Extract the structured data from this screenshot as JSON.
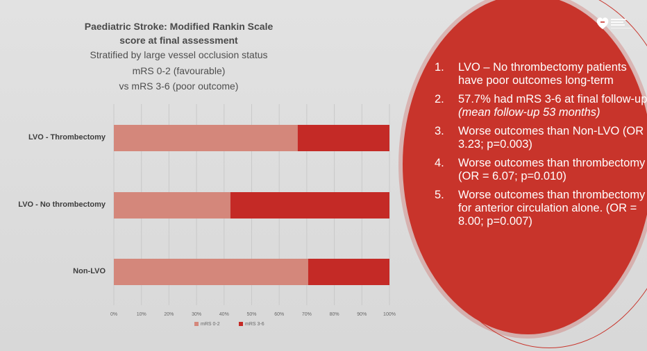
{
  "chart_data": {
    "type": "bar",
    "orientation": "horizontal",
    "stacked": true,
    "normalized": true,
    "title": "Paediatric Stroke: Modified Rankin Scale score at final assessment",
    "title_lines": [
      "Paediatric Stroke: Modified Rankin Scale",
      "score at final assessment"
    ],
    "subtitle_lines": [
      "Stratified by large vessel occlusion status",
      "mRS 0-2 (favourable)",
      "vs mRS 3-6 (poor outcome)"
    ],
    "categories": [
      "LVO - Thrombectomy",
      "LVO - No thrombectomy",
      "Non-LVO"
    ],
    "series": [
      {
        "name": "mRS 0-2",
        "color": "#d4877b",
        "values": [
          66.7,
          42.3,
          70.5
        ]
      },
      {
        "name": "mRS 3-6",
        "color": "#c42a26",
        "values": [
          33.3,
          57.7,
          29.5
        ]
      }
    ],
    "xlim": [
      0,
      100
    ],
    "x_ticks": [
      "0%",
      "10%",
      "20%",
      "30%",
      "40%",
      "50%",
      "60%",
      "70%",
      "80%",
      "90%",
      "100%"
    ],
    "grid": true,
    "legend_position": "bottom"
  },
  "panel": {
    "color": "#c8342b",
    "logo": "american-stroke-association-heart-logo",
    "points": [
      {
        "num": "1.",
        "text": "LVO – No thrombectomy patients have poor outcomes long-term",
        "emph": ""
      },
      {
        "num": "2.",
        "text": "57.7% had mRS 3-6 at final follow-up ",
        "emph": "(mean follow-up 53 months)"
      },
      {
        "num": "3.",
        "text": "Worse outcomes than Non-LVO (OR = 3.23; p=0.003)",
        "emph": ""
      },
      {
        "num": "4.",
        "text": "Worse outcomes than thrombectomy (OR = 6.07; p=0.010)",
        "emph": ""
      },
      {
        "num": "5.",
        "text": "Worse outcomes than thrombectomy for anterior circulation alone.        (OR = 8.00; p=0.007)",
        "emph": ""
      }
    ]
  }
}
